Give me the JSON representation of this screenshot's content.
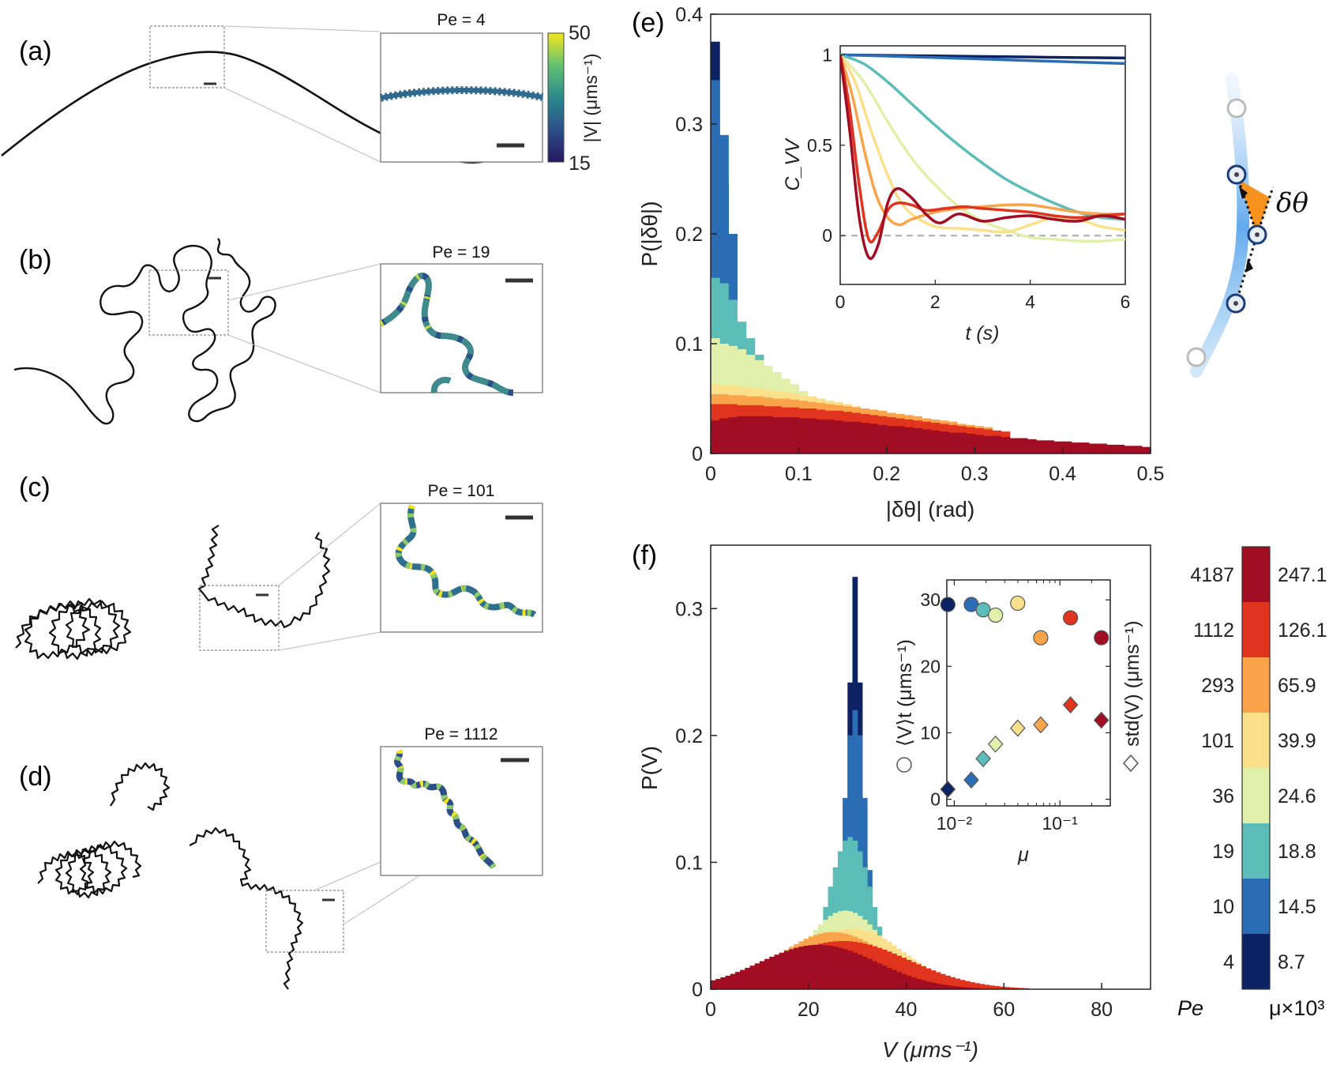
{
  "panels": {
    "a": {
      "label": "(a)",
      "pe_title": "Pe = 4"
    },
    "b": {
      "label": "(b)",
      "pe_title": "Pe = 19"
    },
    "c": {
      "label": "(c)",
      "pe_title": "Pe = 101"
    },
    "d": {
      "label": "(d)",
      "pe_title": "Pe = 1112"
    },
    "e": {
      "label": "(e)"
    },
    "f": {
      "label": "(f)"
    }
  },
  "speed_colorbar": {
    "max": "50",
    "min": "15",
    "label": "|V| (μms⁻¹)"
  },
  "schematic": {
    "angle_label": "δθ"
  },
  "palette": [
    "#0c2262",
    "#2a6db5",
    "#5bbcb8",
    "#e0efa9",
    "#fbe08c",
    "#f9a34a",
    "#e0341e",
    "#a10d22"
  ],
  "colorbar": {
    "pe_values": [
      "4",
      "10",
      "19",
      "36",
      "101",
      "293",
      "1112",
      "4187"
    ],
    "mu_values": [
      "8.7",
      "14.5",
      "18.8",
      "24.6",
      "39.9",
      "65.9",
      "126.1",
      "247.1"
    ],
    "pe_label": "Pe",
    "mu_label": "μ×10³"
  },
  "chart_data": [
    {
      "id": "e",
      "type": "bar",
      "title": "",
      "xlabel": "|δθ| (rad)",
      "ylabel": "P(|δθ|)",
      "xlim": [
        0,
        0.5
      ],
      "ylim": [
        0,
        0.4
      ],
      "xticks": [
        "0",
        "0.1",
        "0.2",
        "0.3",
        "0.4",
        "0.5"
      ],
      "yticks": [
        "0",
        "0.1",
        "0.2",
        "0.3",
        "0.4"
      ],
      "bin_width": 0.01,
      "series": [
        {
          "name": "Pe = 4",
          "values": [
            0.375,
            0.245,
            0.15,
            0.09,
            0.05
          ]
        },
        {
          "name": "Pe = 10",
          "values": [
            0.34,
            0.29,
            0.2,
            0.1,
            0.062,
            0.035,
            0.022
          ]
        },
        {
          "name": "Pe = 19",
          "values": [
            0.16,
            0.155,
            0.14,
            0.12,
            0.105,
            0.09,
            0.075,
            0.06,
            0.048,
            0.038,
            0.03
          ]
        },
        {
          "name": "Pe = 36",
          "values": [
            0.105,
            0.1,
            0.098,
            0.095,
            0.09,
            0.085,
            0.08,
            0.074,
            0.068,
            0.063,
            0.057,
            0.052,
            0.047,
            0.043,
            0.039,
            0.035,
            0.032,
            0.029,
            0.026,
            0.023,
            0.021,
            0.019
          ]
        },
        {
          "name": "Pe = 101",
          "values": [
            0.063,
            0.062,
            0.062,
            0.061,
            0.06,
            0.059,
            0.058,
            0.057,
            0.056,
            0.055,
            0.053,
            0.052,
            0.05,
            0.048,
            0.047,
            0.045,
            0.043,
            0.041,
            0.039,
            0.037,
            0.035,
            0.033,
            0.031,
            0.03,
            0.028,
            0.026,
            0.025,
            0.023,
            0.022,
            0.02
          ]
        },
        {
          "name": "Pe = 293",
          "values": [
            0.054,
            0.054,
            0.053,
            0.053,
            0.052,
            0.052,
            0.051,
            0.05,
            0.05,
            0.049,
            0.048,
            0.047,
            0.046,
            0.045,
            0.044,
            0.043,
            0.042,
            0.041,
            0.04,
            0.039,
            0.037,
            0.036,
            0.035,
            0.034,
            0.032,
            0.031,
            0.03,
            0.029,
            0.027,
            0.026,
            0.025,
            0.024
          ]
        },
        {
          "name": "Pe = 1112",
          "values": [
            0.045,
            0.045,
            0.045,
            0.044,
            0.044,
            0.044,
            0.043,
            0.043,
            0.042,
            0.042,
            0.041,
            0.041,
            0.04,
            0.039,
            0.039,
            0.038,
            0.037,
            0.036,
            0.035,
            0.034,
            0.033,
            0.032,
            0.031,
            0.03,
            0.029,
            0.028,
            0.027,
            0.026,
            0.025,
            0.024,
            0.023,
            0.022,
            0.021,
            0.02
          ]
        },
        {
          "name": "Pe = 4187",
          "values": [
            0.03,
            0.032,
            0.033,
            0.034,
            0.034,
            0.034,
            0.034,
            0.033,
            0.033,
            0.033,
            0.032,
            0.032,
            0.031,
            0.031,
            0.03,
            0.029,
            0.029,
            0.028,
            0.027,
            0.026,
            0.025,
            0.025,
            0.024,
            0.023,
            0.022,
            0.021,
            0.02,
            0.019,
            0.019,
            0.018,
            0.017,
            0.016,
            0.016,
            0.015,
            0.014,
            0.014,
            0.013,
            0.012,
            0.012,
            0.011,
            0.011,
            0.01,
            0.01,
            0.009,
            0.009,
            0.008,
            0.008,
            0.007,
            0.007,
            0.006
          ]
        }
      ]
    },
    {
      "id": "e-inset",
      "type": "line",
      "xlabel": "t (s)",
      "ylabel": "C_VV",
      "xlim": [
        0,
        6
      ],
      "ylim": [
        -0.27,
        1.05
      ],
      "xticks": [
        "0",
        "2",
        "4",
        "6"
      ],
      "yticks": [
        "0",
        "0.5",
        "1"
      ],
      "series": [
        {
          "name": "Pe = 4",
          "x": [
            0,
            1,
            2,
            3,
            4,
            5,
            6
          ],
          "y": [
            1,
            0.997,
            0.994,
            0.991,
            0.988,
            0.985,
            0.983
          ]
        },
        {
          "name": "Pe = 10",
          "x": [
            0,
            1,
            2,
            3,
            4,
            5,
            6
          ],
          "y": [
            1,
            0.993,
            0.985,
            0.977,
            0.968,
            0.96,
            0.952
          ]
        },
        {
          "name": "Pe = 19",
          "x": [
            0,
            0.5,
            1,
            1.5,
            2,
            2.5,
            3,
            3.5,
            4,
            4.5,
            5,
            5.5,
            6
          ],
          "y": [
            1,
            0.95,
            0.85,
            0.73,
            0.61,
            0.5,
            0.4,
            0.31,
            0.24,
            0.18,
            0.13,
            0.1,
            0.09
          ]
        },
        {
          "name": "Pe = 36",
          "x": [
            0,
            0.5,
            1,
            1.5,
            2,
            2.5,
            3,
            3.5,
            4,
            4.5,
            5,
            5.5,
            6
          ],
          "y": [
            1,
            0.85,
            0.63,
            0.43,
            0.28,
            0.16,
            0.08,
            0.03,
            -0.01,
            -0.02,
            -0.03,
            -0.03,
            -0.02
          ]
        },
        {
          "name": "Pe = 101",
          "x": [
            0,
            0.3,
            0.6,
            0.9,
            1.2,
            1.5,
            2,
            2.5,
            3,
            3.5,
            4,
            4.5,
            5,
            5.5,
            6
          ],
          "y": [
            1,
            0.86,
            0.62,
            0.4,
            0.22,
            0.12,
            0.05,
            0.04,
            0.03,
            0.02,
            0.06,
            0.1,
            0.09,
            0.05,
            0.03
          ]
        },
        {
          "name": "Pe = 293",
          "x": [
            0,
            0.25,
            0.5,
            0.75,
            1,
            1.25,
            1.5,
            2,
            2.5,
            3,
            3.5,
            4,
            4.5,
            5,
            5.5,
            6
          ],
          "y": [
            1,
            0.78,
            0.48,
            0.23,
            0.1,
            0.06,
            0.09,
            0.13,
            0.15,
            0.16,
            0.17,
            0.17,
            0.15,
            0.13,
            0.12,
            0.12
          ]
        },
        {
          "name": "Pe = 1112",
          "x": [
            0,
            0.2,
            0.4,
            0.6,
            0.8,
            1,
            1.2,
            1.5,
            1.8,
            2.2,
            2.6,
            3,
            3.5,
            4,
            4.5,
            5,
            5.5,
            6
          ],
          "y": [
            1,
            0.7,
            0.28,
            -0.02,
            0.02,
            0.14,
            0.18,
            0.17,
            0.14,
            0.15,
            0.16,
            0.15,
            0.14,
            0.13,
            0.11,
            0.1,
            0.11,
            0.12
          ]
        },
        {
          "name": "Pe = 4187",
          "x": [
            0,
            0.2,
            0.4,
            0.6,
            0.8,
            1,
            1.2,
            1.5,
            1.8,
            2.1,
            2.5,
            3,
            3.5,
            4,
            4.5,
            5,
            5.5,
            6
          ],
          "y": [
            1,
            0.58,
            0.1,
            -0.12,
            -0.05,
            0.18,
            0.26,
            0.21,
            0.12,
            0.07,
            0.12,
            0.08,
            0.1,
            0.11,
            0.09,
            0.08,
            0.11,
            0.09
          ]
        }
      ]
    },
    {
      "id": "f",
      "type": "bar",
      "xlabel": "V (μms⁻¹)",
      "ylabel": "P(V)",
      "xlim": [
        0,
        90
      ],
      "ylim": [
        0,
        0.35
      ],
      "xticks": [
        "0",
        "20",
        "40",
        "60",
        "80"
      ],
      "yticks": [
        "0",
        "0.1",
        "0.2",
        "0.3"
      ],
      "series": [
        {
          "name": "Pe = 4",
          "mean": 29.5,
          "std": 1.3,
          "scale": 0.325
        },
        {
          "name": "Pe = 10",
          "mean": 29.5,
          "std": 2.3,
          "scale": 0.22
        },
        {
          "name": "Pe = 19",
          "mean": 28.5,
          "std": 4.5,
          "scale": 0.12
        },
        {
          "name": "Pe = 36",
          "mean": 27.5,
          "std": 8,
          "scale": 0.062
        },
        {
          "name": "Pe = 101",
          "mean": 29,
          "std": 10.5,
          "scale": 0.048
        },
        {
          "name": "Pe = 293",
          "mean": 25,
          "std": 11,
          "scale": 0.045
        },
        {
          "name": "Pe = 1112",
          "mean": 27,
          "std": 13.5,
          "scale": 0.038
        },
        {
          "name": "Pe = 4187",
          "mean": 22,
          "std": 12,
          "scale": 0.035
        }
      ]
    },
    {
      "id": "f-inset",
      "type": "scatter",
      "xlabel": "μ",
      "ylabel_left": "⟨V⟩t (μms⁻¹)",
      "ylabel_right": "std(V) (μms⁻¹)",
      "xscale": "log",
      "xlim": [
        0.0085,
        0.3
      ],
      "ylim": [
        -1,
        33
      ],
      "xticks": [
        "10⁻²",
        "10⁻¹"
      ],
      "yticks": [
        "0",
        "10",
        "20",
        "30"
      ],
      "mu": [
        0.0087,
        0.0145,
        0.0188,
        0.0246,
        0.0399,
        0.0659,
        0.1261,
        0.2471
      ],
      "mean_V": [
        29.3,
        29.3,
        28.5,
        27.7,
        29.5,
        24.3,
        27.3,
        24.3
      ],
      "std_V": [
        1.5,
        2.9,
        6.1,
        8.3,
        10.7,
        11.2,
        14.2,
        11.9
      ]
    }
  ]
}
